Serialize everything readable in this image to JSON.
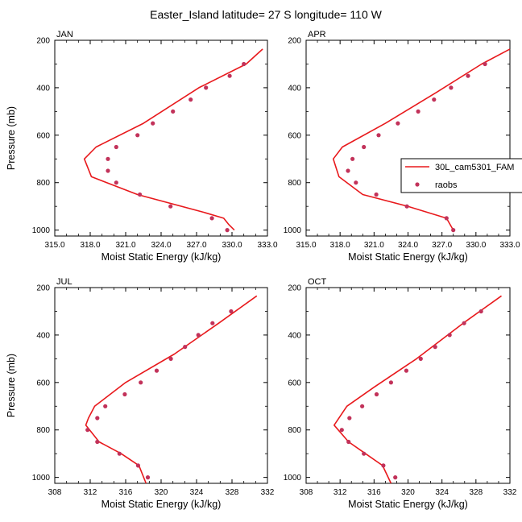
{
  "title": "Easter_Island  latitude= 27 S longitude= 110 W",
  "legend": {
    "model_label": "30L_cam5301_FAM",
    "obs_label": "raobs",
    "colors": {
      "model": "#e8191c",
      "obs": "#c2325a"
    }
  },
  "chart_data": [
    {
      "type": "line",
      "panel": "JAN",
      "label": "JAN",
      "xlabel": "Moist Static Energy (kJ/kg)",
      "ylabel": "Pressure (mb)",
      "xlim": [
        315,
        333
      ],
      "ylim": [
        200,
        1025
      ],
      "y_reversed": true,
      "xticks": [
        "315.0",
        "318.0",
        "321.0",
        "324.0",
        "327.0",
        "330.0",
        "333.0"
      ],
      "yticks": [
        "200",
        "400",
        "600",
        "800",
        "1000"
      ],
      "series": [
        {
          "name": "30L_cam5301_FAM",
          "kind": "line",
          "x": [
            330.2,
            329.7,
            329.3,
            327.6,
            322.0,
            318.1,
            317.5,
            318.5,
            322.5,
            327.2,
            331.2,
            332.6
          ],
          "y": [
            1000,
            975,
            950,
            925,
            850,
            775,
            700,
            650,
            550,
            400,
            300,
            237
          ]
        },
        {
          "name": "raobs",
          "kind": "scatter",
          "x": [
            329.6,
            328.3,
            324.8,
            322.2,
            320.2,
            319.5,
            319.5,
            320.2,
            322.0,
            323.3,
            325.0,
            326.5,
            327.8,
            329.8,
            331.0
          ],
          "y": [
            1000,
            950,
            900,
            850,
            800,
            750,
            700,
            650,
            600,
            550,
            500,
            450,
            400,
            350,
            300
          ]
        }
      ]
    },
    {
      "type": "line",
      "panel": "APR",
      "label": "APR",
      "xlabel": "Moist Static Energy (kJ/kg)",
      "ylabel": "",
      "xlim": [
        315,
        333
      ],
      "ylim": [
        200,
        1025
      ],
      "y_reversed": true,
      "xticks": [
        "315.0",
        "318.0",
        "321.0",
        "324.0",
        "327.0",
        "330.0",
        "333.0"
      ],
      "yticks": [
        "200",
        "400",
        "600",
        "800",
        "1000"
      ],
      "series": [
        {
          "name": "30L_cam5301_FAM",
          "kind": "line",
          "x": [
            328.0,
            327.4,
            324.0,
            320.0,
            317.9,
            317.4,
            318.2,
            322.0,
            326.5,
            330.5,
            333.0
          ],
          "y": [
            1000,
            950,
            900,
            850,
            775,
            700,
            650,
            550,
            420,
            300,
            237
          ]
        },
        {
          "name": "raobs",
          "kind": "scatter",
          "x": [
            328.0,
            327.4,
            323.9,
            321.2,
            319.4,
            318.7,
            319.1,
            320.1,
            321.4,
            323.1,
            324.9,
            326.3,
            327.8,
            329.3,
            330.8
          ],
          "y": [
            1000,
            950,
            900,
            850,
            800,
            750,
            700,
            650,
            600,
            550,
            500,
            450,
            400,
            350,
            300
          ]
        }
      ]
    },
    {
      "type": "line",
      "panel": "JUL",
      "label": "JUL",
      "xlabel": "Moist Static Energy (kJ/kg)",
      "ylabel": "Pressure (mb)",
      "xlim": [
        308,
        332
      ],
      "ylim": [
        200,
        1025
      ],
      "y_reversed": true,
      "xticks": [
        "308",
        "312",
        "316",
        "320",
        "324",
        "328",
        "332"
      ],
      "yticks": [
        "200",
        "400",
        "600",
        "800",
        "1000"
      ],
      "series": [
        {
          "name": "30L_cam5301_FAM",
          "kind": "line",
          "x": [
            318.3,
            317.5,
            315.5,
            313.0,
            311.5,
            311.8,
            312.5,
            316.0,
            321.5,
            326.5,
            330.8
          ],
          "y": [
            1025,
            950,
            900,
            850,
            780,
            750,
            700,
            600,
            480,
            350,
            235
          ]
        },
        {
          "name": "raobs",
          "kind": "scatter",
          "x": [
            318.5,
            317.4,
            315.3,
            312.8,
            311.7,
            312.8,
            313.7,
            315.9,
            317.7,
            319.5,
            321.1,
            322.7,
            324.2,
            325.8,
            327.9
          ],
          "y": [
            1000,
            950,
            900,
            850,
            800,
            750,
            700,
            650,
            600,
            550,
            500,
            450,
            400,
            350,
            300
          ]
        }
      ]
    },
    {
      "type": "line",
      "panel": "OCT",
      "label": "OCT",
      "xlabel": "Moist Static Energy (kJ/kg)",
      "ylabel": "",
      "xlim": [
        308,
        332
      ],
      "ylim": [
        200,
        1025
      ],
      "y_reversed": true,
      "xticks": [
        "308",
        "312",
        "316",
        "320",
        "324",
        "328",
        "332"
      ],
      "yticks": [
        "200",
        "400",
        "600",
        "800",
        "1000"
      ],
      "series": [
        {
          "name": "30L_cam5301_FAM",
          "kind": "line",
          "x": [
            318.0,
            317.0,
            315.0,
            313.0,
            311.3,
            312.8,
            316.0,
            321.0,
            326.5,
            331.0
          ],
          "y": [
            1025,
            950,
            900,
            850,
            780,
            700,
            620,
            500,
            350,
            235
          ]
        },
        {
          "name": "raobs",
          "kind": "scatter",
          "x": [
            318.5,
            317.1,
            314.8,
            313.0,
            312.2,
            313.1,
            314.6,
            316.3,
            318.0,
            319.8,
            321.5,
            323.2,
            324.9,
            326.6,
            328.6
          ],
          "y": [
            1000,
            950,
            900,
            850,
            800,
            750,
            700,
            650,
            600,
            550,
            500,
            450,
            400,
            350,
            300
          ]
        }
      ]
    }
  ]
}
